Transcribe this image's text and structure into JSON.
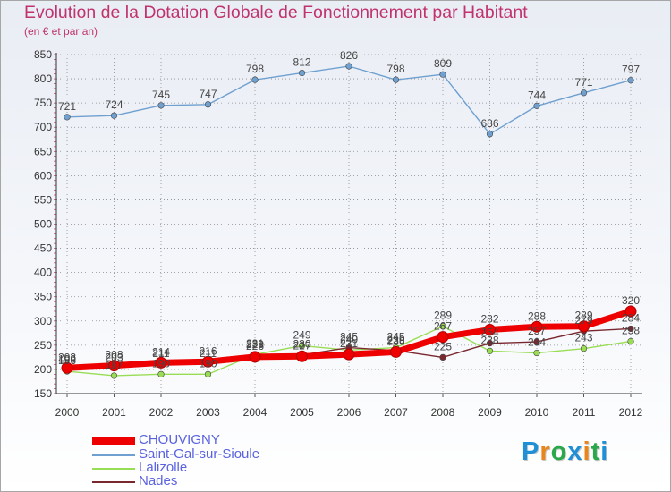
{
  "title": "Evolution de la Dotation Globale de Fonctionnement par Habitant",
  "subtitle": "(en € et par an)",
  "logo": {
    "text": "Proxiti",
    "letters": [
      "P",
      "r",
      "o",
      "x",
      "i",
      "t",
      "i"
    ],
    "colors": [
      "#1f8fd6",
      "#e8861c",
      "#2ba84a",
      "#1f8fd6",
      "#e8861c",
      "#2ba84a",
      "#1f8fd6"
    ]
  },
  "colors": {
    "title": "#c0336d",
    "legend_text": "#5a62e0",
    "grid": "#8a8a8a",
    "axis_text": "#333333"
  },
  "chart_data": {
    "type": "line",
    "title": "Evolution de la Dotation Globale de Fonctionnement par Habitant",
    "subtitle": "(en € et par an)",
    "xlabel": "",
    "ylabel": "",
    "x": [
      "2000",
      "2001",
      "2002",
      "2003",
      "2004",
      "2005",
      "2006",
      "2007",
      "2008",
      "2009",
      "2010",
      "2011",
      "2012"
    ],
    "ylim": [
      150,
      850
    ],
    "yticks": [
      150,
      200,
      250,
      300,
      350,
      400,
      450,
      500,
      550,
      600,
      650,
      700,
      750,
      800,
      850
    ],
    "grid": true,
    "legend_position": "bottom-left",
    "series": [
      {
        "name": "CHOUVIGNY",
        "color": "#ee0000",
        "values": [
          203,
          208,
          214,
          216,
          226,
          227,
          231,
          236,
          267,
          282,
          288,
          289,
          320
        ],
        "labels": [
          "203",
          "208",
          "214",
          "216",
          "226",
          "227",
          "231",
          "236",
          "267",
          "282",
          "288",
          "289",
          "320"
        ]
      },
      {
        "name": "Saint-Gal-sur-Sioule",
        "color": "#6fa0d0",
        "values": [
          721,
          724,
          745,
          747,
          798,
          812,
          826,
          798,
          809,
          686,
          744,
          771,
          797
        ],
        "labels": [
          "721",
          "724",
          "745",
          "747",
          "798",
          "812",
          "826",
          "798",
          "809",
          "686",
          "744",
          "771",
          "797"
        ]
      },
      {
        "name": "Lalizolle",
        "color": "#99dd55",
        "values": [
          196,
          187,
          190,
          190,
          231,
          249,
          240,
          245,
          289,
          238,
          234,
          243,
          258
        ],
        "labels": [
          "196",
          "187",
          "190",
          "190",
          "231",
          "249",
          "240",
          "245",
          "289",
          "238",
          "234",
          "243",
          "258"
        ]
      },
      {
        "name": "Nades",
        "color": "#7a2830",
        "values": [
          199,
          203,
          211,
          211,
          229,
          230,
          245,
          239,
          225,
          254,
          257,
          279,
          284
        ],
        "labels": [
          "199",
          "203",
          "211",
          "211",
          "229",
          "230",
          "245",
          "239",
          "225",
          "254",
          "257",
          "279",
          "284"
        ]
      }
    ]
  }
}
